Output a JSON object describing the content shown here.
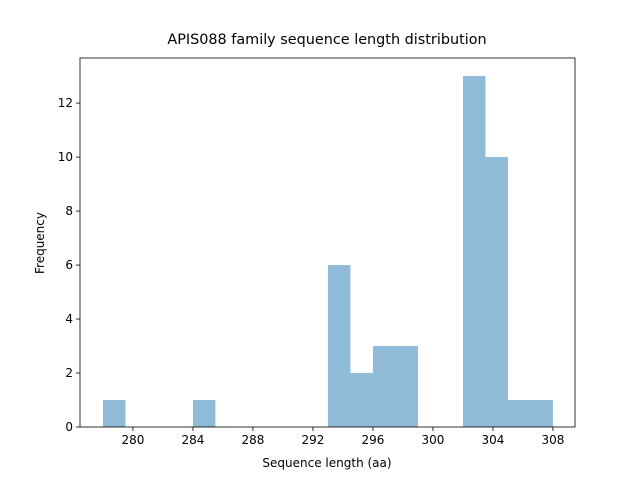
{
  "chart_data": {
    "type": "histogram",
    "title": "APIS088 family sequence length distribution",
    "x_label": "Sequence length (aa)",
    "y_label": "Frequency",
    "bins": [
      278,
      279.5,
      281,
      282.5,
      284,
      285.5,
      287,
      288.5,
      290,
      291.5,
      293,
      294.5,
      296,
      297.5,
      299,
      300.5,
      302,
      303.5,
      305,
      306.5,
      308
    ],
    "counts": [
      1,
      0,
      0,
      0,
      1,
      0,
      0,
      0,
      0,
      0,
      6,
      2,
      3,
      3,
      0,
      0,
      13,
      10,
      1,
      1
    ],
    "color": "#8fbbd9",
    "xlim": [
      276.47,
      309.47
    ],
    "xticks": [
      280,
      284,
      288,
      292,
      296,
      300,
      304,
      308
    ],
    "ylim": [
      0,
      13.67
    ],
    "yticks": [
      0,
      2,
      4,
      6,
      8,
      10,
      12
    ]
  }
}
